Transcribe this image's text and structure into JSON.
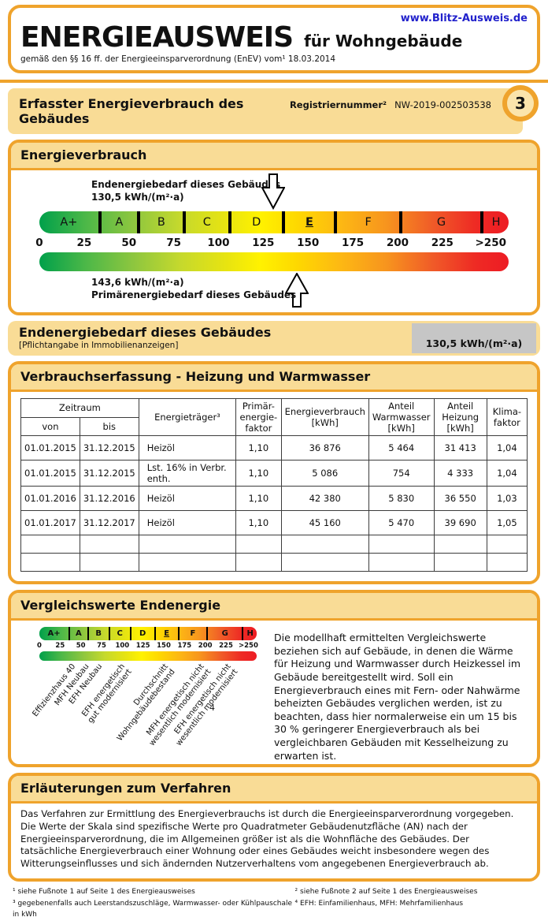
{
  "colors": {
    "accent_orange": "#EFA32C",
    "amber_fill": "#F9DC96",
    "gray_box": "#C6C6C6",
    "link_blue": "#2222CC",
    "scale_gradient": [
      "#00A04A",
      "#8DC63F",
      "#FFF200",
      "#FDB913",
      "#F7941E",
      "#ED1C24"
    ]
  },
  "header": {
    "url": "www.Blitz-Ausweis.de",
    "title": "ENERGIEAUSWEIS",
    "subtitle": "für Wohngebäude",
    "law_line": "gemäß den §§ 16 ff. der Energieeinsparverordnung (EnEV) vom¹ 18.03.2014"
  },
  "band": {
    "title": "Erfasster Energieverbrauch des Gebäudes",
    "reg_label": "Registriernummer²",
    "reg_value": "NW-2019-002503538",
    "page_number": "3"
  },
  "energy_section": {
    "title": "Energieverbrauch",
    "end_annotation": "Endenergiebedarf dieses Gebäudes\n130,5 kWh/(m²·a)",
    "end_value_num": 130.5,
    "primary_annotation": "143,6 kWh/(m²·a)\nPrimärenergiebedarf dieses Gebäudes",
    "primary_value_num": 143.6
  },
  "scale": {
    "max": 262,
    "classes": [
      {
        "label": "A+",
        "from": 0,
        "to": 30
      },
      {
        "label": "A",
        "from": 30,
        "to": 50
      },
      {
        "label": "B",
        "from": 50,
        "to": 75
      },
      {
        "label": "C",
        "from": 75,
        "to": 100
      },
      {
        "label": "D",
        "from": 100,
        "to": 130
      },
      {
        "label": "E",
        "from": 130,
        "to": 160,
        "current": true
      },
      {
        "label": "F",
        "from": 160,
        "to": 200
      },
      {
        "label": "G",
        "from": 200,
        "to": 250
      },
      {
        "label": "H",
        "from": 250,
        "to": 262
      }
    ],
    "ticks": [
      "0",
      "25",
      "50",
      "75",
      "100",
      "125",
      "150",
      "175",
      "200",
      "225",
      ">250"
    ],
    "tick_values": [
      0,
      25,
      50,
      75,
      100,
      125,
      150,
      175,
      200,
      225,
      252
    ]
  },
  "end_band": {
    "title": "Endenergiebedarf dieses Gebäudes",
    "subtitle": "[Pflichtangabe in Immobilienanzeigen]",
    "value": "130,5 kWh/(m²·a)"
  },
  "table_section": {
    "title": "Verbrauchserfassung - Heizung und Warmwasser",
    "headers": {
      "zeitraum": "Zeitraum",
      "von": "von",
      "bis": "bis",
      "energietraeger": "Energieträger³",
      "primaerfaktor": "Primär-\nenergie-\nfaktor",
      "verbrauch": "Energieverbrauch\n[kWh]",
      "anteil_ww": "Anteil\nWarmwasser\n[kWh]",
      "anteil_heizung": "Anteil\nHeizung\n[kWh]",
      "klimafaktor": "Klima-\nfaktor"
    },
    "rows": [
      [
        "01.01.2015",
        "31.12.2015",
        "Heizöl",
        "1,10",
        "36 876",
        "5 464",
        "31 413",
        "1,04"
      ],
      [
        "01.01.2015",
        "31.12.2015",
        "Lst. 16% in Verbr. enth.",
        "1,10",
        "5 086",
        "754",
        "4 333",
        "1,04"
      ],
      [
        "01.01.2016",
        "31.12.2016",
        "Heizöl",
        "1,10",
        "42 380",
        "5 830",
        "36 550",
        "1,03"
      ],
      [
        "01.01.2017",
        "31.12.2017",
        "Heizöl",
        "1,10",
        "45 160",
        "5 470",
        "39 690",
        "1,05"
      ]
    ],
    "empty_rows": 2
  },
  "comparison": {
    "title": "Vergleichswerte Endenergie",
    "labels": [
      {
        "text": "Effizienzhaus 40",
        "anchor_pct": 14.5
      },
      {
        "text": "MFH Neubau",
        "anchor_pct": 20.6
      },
      {
        "text": "EFH Neubau",
        "anchor_pct": 26.8
      },
      {
        "text": "EFH energetisch\ngut modernisiert",
        "anchor_pct": 37
      },
      {
        "text": "Durchschnitt\nWohngebäudebestand",
        "anchor_pct": 57
      },
      {
        "text": "MFH energetisch nicht\nwesentlich modernisiert",
        "anchor_pct": 73.5
      },
      {
        "text": "EFH energetisch nicht\nwesentlich modernisiert",
        "anchor_pct": 86
      },
      {
        "text": "4",
        "anchor_pct": null,
        "note": true
      }
    ],
    "footnote_marker": "4",
    "text": "Die modellhaft ermittelten Vergleichswerte beziehen sich auf Gebäude, in denen die Wärme für Heizung und Warmwasser durch Heizkessel im Gebäude bereitgestellt wird. Soll ein Energieverbrauch eines mit Fern- oder Nahwärme beheizten Gebäudes verglichen werden, ist zu beachten, dass hier normalerweise ein um 15 bis 30 % geringerer Energieverbrauch als bei vergleichbaren Gebäuden mit Kesselheizung zu erwarten ist."
  },
  "explanation": {
    "title": "Erläuterungen zum Verfahren",
    "text": "Das Verfahren zur Ermittlung des Energieverbrauchs ist durch die Energieeinsparverordnung vorgegeben. Die Werte der Skala sind spezifische Werte pro Quadratmeter Gebäudenutzfläche (AN) nach der Energieeinsparverordnung, die im Allgemeinen größer ist als die Wohnfläche des Gebäudes. Der tatsächliche Energieverbrauch einer Wohnung oder eines Gebäudes weicht insbesondere wegen des Witterungseinflusses und sich ändernden Nutzerverhaltens vom angegebenen Energieverbrauch ab."
  },
  "footnotes": {
    "left": [
      "¹ siehe Fußnote 1 auf Seite 1 des Energieausweises",
      "³ gegebenenfalls auch Leerstandszuschläge, Warmwasser- oder Kühlpauschale in kWh"
    ],
    "right": [
      "² siehe Fußnote 2 auf Seite 1 des Energieausweises",
      "⁴ EFH: Einfamilienhaus, MFH: Mehrfamilienhaus"
    ]
  }
}
